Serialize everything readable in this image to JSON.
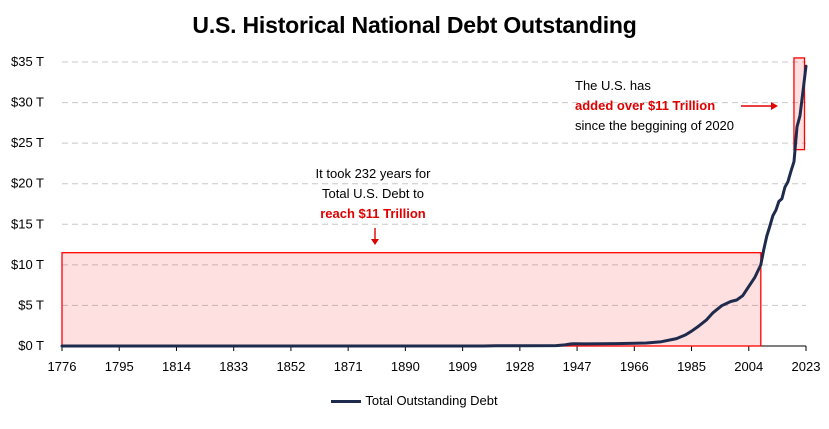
{
  "chart_data": {
    "type": "line",
    "title": "U.S. Historical National Debt Outstanding",
    "xlabel": "",
    "ylabel": "",
    "x_ticks": [
      "1776",
      "1795",
      "1814",
      "1833",
      "1852",
      "1871",
      "1890",
      "1909",
      "1928",
      "1947",
      "1966",
      "1985",
      "2004",
      "2023"
    ],
    "y_ticks": [
      "$0 T",
      "$5 T",
      "$10 T",
      "$15 T",
      "$20 T",
      "$25 T",
      "$30 T",
      "$35 T"
    ],
    "xlim": [
      1776,
      2023
    ],
    "ylim": [
      0,
      35
    ],
    "grid": "horizontal dashed",
    "legend_position": "bottom",
    "series": [
      {
        "name": "Total Outstanding Debt",
        "color": "#1f2b4d",
        "x": [
          1776,
          1800,
          1850,
          1900,
          1916,
          1920,
          1930,
          1940,
          1943,
          1945,
          1946,
          1950,
          1960,
          1970,
          1975,
          1980,
          1983,
          1985,
          1987,
          1990,
          1992,
          1995,
          1998,
          2000,
          2002,
          2004,
          2006,
          2008,
          2009,
          2010,
          2011,
          2012,
          2013,
          2014,
          2015,
          2016,
          2017,
          2018,
          2019,
          2020,
          2021,
          2022,
          2023
        ],
        "values": [
          0,
          0,
          0,
          0,
          0,
          0.03,
          0.02,
          0.05,
          0.14,
          0.26,
          0.27,
          0.26,
          0.29,
          0.37,
          0.53,
          0.91,
          1.37,
          1.82,
          2.35,
          3.23,
          4.06,
          4.97,
          5.48,
          5.67,
          6.2,
          7.35,
          8.45,
          9.99,
          11.9,
          13.56,
          14.79,
          16.07,
          16.74,
          17.82,
          18.15,
          19.57,
          20.24,
          21.52,
          22.72,
          27.0,
          28.4,
          31.4,
          34.5
        ]
      }
    ],
    "highlight_boxes": [
      {
        "x_start": 1776,
        "x_end": 2008,
        "y_start": 0,
        "y_end": 11.5,
        "color": "#ff0000"
      },
      {
        "x_start": 2019,
        "x_end": 2022.5,
        "y_start": 24.2,
        "y_end": 35.5,
        "color": "#ff0000"
      }
    ],
    "annotations": [
      {
        "lines": [
          "It took 232 years for",
          "Total U.S. Debt to",
          "reach $11 Trillion"
        ],
        "highlight_line": 2,
        "highlight_color": "#e00000"
      },
      {
        "lines": [
          "The U.S. has",
          "added over $11 Trillion",
          "since the beggining of 2020"
        ],
        "highlight_line": 1,
        "highlight_color": "#e00000"
      }
    ]
  }
}
